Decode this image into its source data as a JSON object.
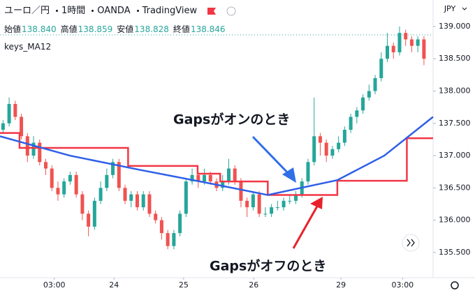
{
  "chart_data": {
    "type": "candlestick",
    "symbol": "ユーロ／円",
    "interval": "1時間",
    "broker": "OANDA",
    "source": "TradingView",
    "ohlc_legend": [
      {
        "label": "始値",
        "value": "138.840"
      },
      {
        "label": "高値",
        "value": "138.859"
      },
      {
        "label": "安値",
        "value": "138.828"
      },
      {
        "label": "終値",
        "value": "138.846"
      }
    ],
    "indicator": "keys_MA12",
    "currency": "JPY",
    "up_color": "#26a69a",
    "down_color": "#ef5350",
    "open": [
      137.4,
      137.5,
      137.8,
      137.6,
      137.3,
      137.0,
      137.2,
      136.9,
      136.8,
      136.5,
      136.4,
      136.6,
      136.7,
      136.4,
      136.1,
      135.9,
      136.3,
      136.5,
      136.7,
      136.9,
      136.5,
      136.3,
      136.4,
      136.2,
      136.4,
      136.1,
      136.0,
      135.8,
      135.6,
      135.8,
      136.1,
      136.6,
      136.7,
      136.6,
      136.7,
      136.6,
      136.5,
      136.6,
      136.8,
      136.6,
      136.3,
      136.2,
      136.4,
      136.1,
      136.1,
      136.2,
      136.2,
      136.3,
      136.3,
      136.4,
      136.6,
      136.9,
      137.3,
      137.2,
      137.0,
      137.1,
      137.2,
      137.4,
      137.6,
      137.7,
      137.9,
      138.0,
      138.2,
      138.5,
      138.7,
      138.6,
      138.9,
      138.8,
      138.7,
      138.8
    ],
    "high": [
      137.55,
      137.9,
      137.85,
      137.65,
      137.35,
      137.3,
      137.25,
      136.95,
      136.85,
      136.6,
      136.65,
      136.75,
      136.75,
      136.45,
      136.15,
      136.35,
      136.6,
      136.8,
      136.95,
      136.95,
      136.55,
      136.45,
      136.45,
      136.45,
      136.45,
      136.15,
      136.05,
      135.85,
      135.85,
      136.15,
      136.65,
      136.8,
      136.75,
      136.8,
      136.75,
      136.65,
      136.7,
      136.95,
      136.85,
      136.65,
      136.35,
      136.45,
      136.45,
      136.2,
      136.25,
      136.3,
      136.35,
      136.4,
      136.45,
      136.65,
      136.95,
      137.9,
      137.35,
      137.25,
      137.15,
      137.3,
      137.45,
      137.65,
      137.75,
      137.95,
      138.1,
      138.25,
      138.6,
      138.9,
      138.75,
      139.0,
      138.95,
      138.85,
      138.85,
      138.85
    ],
    "low": [
      137.35,
      137.45,
      137.55,
      137.25,
      136.9,
      136.95,
      136.85,
      136.7,
      136.45,
      136.3,
      136.35,
      136.55,
      136.35,
      136.0,
      135.75,
      135.85,
      136.25,
      136.45,
      136.65,
      136.45,
      136.25,
      136.2,
      136.15,
      136.15,
      136.05,
      135.95,
      135.7,
      135.55,
      135.55,
      135.75,
      136.05,
      136.55,
      136.5,
      136.55,
      136.55,
      136.45,
      136.45,
      136.55,
      136.55,
      136.2,
      136.05,
      136.15,
      136.05,
      136.05,
      136.05,
      136.15,
      136.15,
      136.25,
      136.25,
      136.35,
      136.55,
      136.85,
      137.0,
      136.9,
      136.95,
      137.05,
      137.15,
      137.35,
      137.5,
      137.65,
      137.85,
      137.95,
      138.15,
      138.45,
      138.5,
      138.55,
      138.7,
      138.6,
      138.6,
      138.4
    ],
    "close": [
      137.5,
      137.8,
      137.6,
      137.3,
      137.0,
      137.2,
      136.9,
      136.8,
      136.5,
      136.4,
      136.6,
      136.7,
      136.4,
      136.1,
      135.9,
      136.3,
      136.5,
      136.7,
      136.9,
      136.5,
      136.3,
      136.4,
      136.2,
      136.4,
      136.1,
      136.0,
      135.8,
      135.6,
      135.8,
      136.1,
      136.6,
      136.7,
      136.6,
      136.7,
      136.6,
      136.5,
      136.6,
      136.8,
      136.6,
      136.3,
      136.2,
      136.4,
      136.1,
      136.1,
      136.2,
      136.2,
      136.3,
      136.3,
      136.4,
      136.6,
      136.9,
      137.3,
      137.2,
      137.0,
      137.1,
      137.2,
      137.4,
      137.6,
      137.7,
      137.9,
      138.0,
      138.2,
      138.5,
      138.7,
      138.6,
      138.9,
      138.8,
      138.7,
      138.8,
      138.5
    ],
    "series": [
      {
        "color": "#f23645",
        "x": [
          -0.5,
          2.7,
          2.7,
          20.5,
          20.5,
          31.9,
          31.9,
          35.6,
          35.6,
          43.4,
          43.4,
          54.8,
          54.8,
          66.2,
          66.2,
          70.5
        ],
        "values": [
          137.35,
          137.35,
          137.12,
          137.12,
          136.84,
          136.84,
          136.72,
          136.72,
          136.6,
          136.6,
          136.39,
          136.39,
          136.61,
          136.61,
          137.27,
          137.27
        ]
      },
      {
        "color": "#2f5fe8",
        "x": [
          -0.5,
          10.95,
          22.4,
          33.9,
          43.4,
          54.8,
          62.5,
          70.5
        ],
        "values": [
          137.3,
          137.0,
          136.78,
          136.57,
          136.39,
          136.62,
          137.0,
          137.6
        ]
      }
    ],
    "annotations": [
      {
        "text": "Gapsがオンのとき",
        "color": "#1f6fe0"
      },
      {
        "text": "Gapsがオフのとき",
        "color": "#e8222a"
      }
    ],
    "xlim": [
      -0.5,
      70.5
    ],
    "xticks": [
      {
        "value": 8.4,
        "label": "03:00"
      },
      {
        "value": 18.2,
        "label": "24"
      },
      {
        "value": 29.6,
        "label": "25"
      },
      {
        "value": 41.1,
        "label": "26"
      },
      {
        "value": 55.4,
        "label": "29"
      },
      {
        "value": 65.5,
        "label": "03:00"
      }
    ],
    "ylim": [
      135.11,
      139.41
    ],
    "yticks": [
      {
        "value": 135.5,
        "label": "135.500"
      },
      {
        "value": 136.0,
        "label": "136.000"
      },
      {
        "value": 136.5,
        "label": "136.500"
      },
      {
        "value": 137.0,
        "label": "137.000"
      },
      {
        "value": 137.5,
        "label": "137.500"
      },
      {
        "value": 138.0,
        "label": "138.000"
      },
      {
        "value": 138.5,
        "label": "138.500"
      },
      {
        "value": 139.0,
        "label": "139.000"
      }
    ],
    "grid": false
  }
}
